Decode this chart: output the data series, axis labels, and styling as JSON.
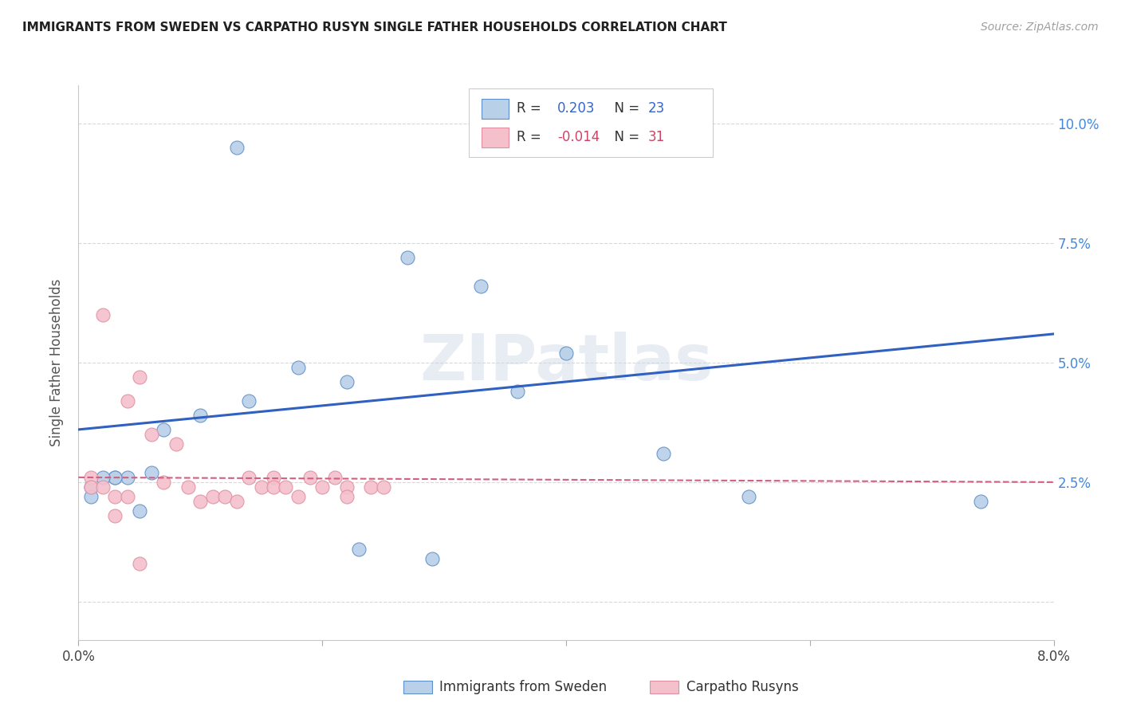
{
  "title": "IMMIGRANTS FROM SWEDEN VS CARPATHO RUSYN SINGLE FATHER HOUSEHOLDS CORRELATION CHART",
  "source": "Source: ZipAtlas.com",
  "ylabel": "Single Father Households",
  "xlim": [
    0.0,
    0.08
  ],
  "ylim": [
    -0.008,
    0.108
  ],
  "watermark": "ZIPatlas",
  "blue_scatter_x": [
    0.013,
    0.027,
    0.033,
    0.04,
    0.018,
    0.022,
    0.014,
    0.01,
    0.007,
    0.006,
    0.004,
    0.003,
    0.003,
    0.002,
    0.001,
    0.001,
    0.005,
    0.048,
    0.055,
    0.074,
    0.023,
    0.029,
    0.036
  ],
  "blue_scatter_y": [
    0.095,
    0.072,
    0.066,
    0.052,
    0.049,
    0.046,
    0.042,
    0.039,
    0.036,
    0.027,
    0.026,
    0.026,
    0.026,
    0.026,
    0.024,
    0.022,
    0.019,
    0.031,
    0.022,
    0.021,
    0.011,
    0.009,
    0.044
  ],
  "pink_scatter_x": [
    0.002,
    0.001,
    0.001,
    0.002,
    0.003,
    0.004,
    0.005,
    0.006,
    0.007,
    0.008,
    0.009,
    0.01,
    0.011,
    0.012,
    0.013,
    0.014,
    0.015,
    0.016,
    0.016,
    0.017,
    0.018,
    0.019,
    0.02,
    0.021,
    0.022,
    0.022,
    0.024,
    0.025,
    0.003,
    0.004,
    0.005
  ],
  "pink_scatter_y": [
    0.06,
    0.026,
    0.024,
    0.024,
    0.022,
    0.022,
    0.047,
    0.035,
    0.025,
    0.033,
    0.024,
    0.021,
    0.022,
    0.022,
    0.021,
    0.026,
    0.024,
    0.026,
    0.024,
    0.024,
    0.022,
    0.026,
    0.024,
    0.026,
    0.024,
    0.022,
    0.024,
    0.024,
    0.018,
    0.042,
    0.008
  ],
  "blue_line_x": [
    0.0,
    0.08
  ],
  "blue_line_y": [
    0.036,
    0.056
  ],
  "pink_line_x": [
    0.0,
    0.08
  ],
  "pink_line_y": [
    0.026,
    0.025
  ],
  "blue_color": "#b8d0e8",
  "blue_edge_color": "#6090c8",
  "blue_line_color": "#3060c0",
  "pink_color": "#f4c0cc",
  "pink_edge_color": "#e090a0",
  "pink_line_color": "#d06080",
  "grid_color": "#d8d8d8",
  "title_color": "#202020",
  "source_color": "#a0a0a0",
  "right_tick_color": "#4488dd",
  "background_color": "#ffffff",
  "legend_blue_r": "0.203",
  "legend_blue_n": "23",
  "legend_pink_r": "-0.014",
  "legend_pink_n": "31"
}
